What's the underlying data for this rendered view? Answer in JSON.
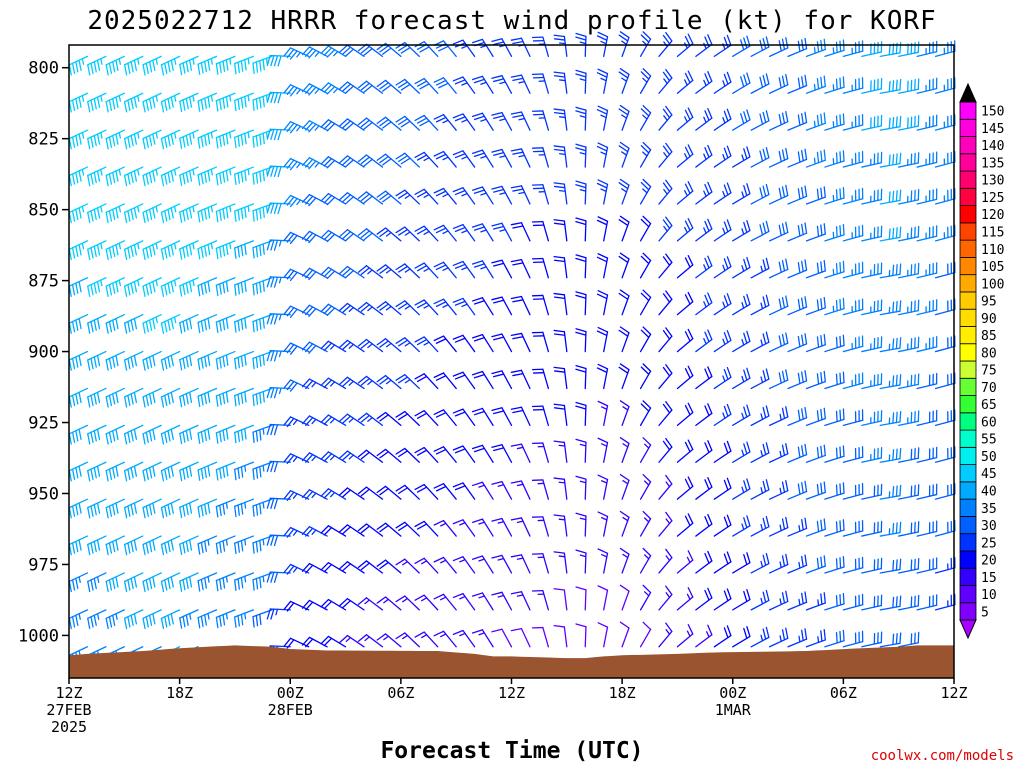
{
  "title": "2025022712 HRRR forecast wind profile (kt) for KORF",
  "xlabel": "Forecast Time (UTC)",
  "credit": "coolwx.com/models",
  "chart_data": {
    "type": "wind_barb_profile",
    "title": "2025022712 HRRR forecast wind profile (kt) for KORF",
    "xlabel": "Forecast Time (UTC)",
    "units": "kt",
    "y_axis": {
      "scale": "pressure",
      "reversed": true,
      "range": [
        792,
        1015
      ],
      "ticks": [
        800,
        825,
        850,
        875,
        900,
        925,
        950,
        975,
        1000
      ]
    },
    "x_axis": {
      "range_hours": [
        0,
        48
      ],
      "ticks": [
        {
          "hour": 0,
          "line1": "12Z",
          "line2": "27FEB",
          "line3": "2025"
        },
        {
          "hour": 6,
          "line1": "18Z",
          "line2": "",
          "line3": ""
        },
        {
          "hour": 12,
          "line1": "00Z",
          "line2": "28FEB",
          "line3": ""
        },
        {
          "hour": 18,
          "line1": "06Z",
          "line2": "",
          "line3": ""
        },
        {
          "hour": 24,
          "line1": "12Z",
          "line2": "",
          "line3": ""
        },
        {
          "hour": 30,
          "line1": "18Z",
          "line2": "",
          "line3": ""
        },
        {
          "hour": 36,
          "line1": "00Z",
          "line2": "1MAR",
          "line3": ""
        },
        {
          "hour": 42,
          "line1": "06Z",
          "line2": "",
          "line3": ""
        },
        {
          "hour": 48,
          "line1": "12Z",
          "line2": "",
          "line3": ""
        }
      ]
    },
    "barb_hours": [
      1,
      2,
      3,
      4,
      5,
      6,
      7,
      8,
      9,
      10,
      11,
      12,
      13,
      14,
      15,
      16,
      17,
      18,
      19,
      20,
      21,
      22,
      23,
      24,
      25,
      26,
      27,
      28,
      29,
      30,
      31,
      32,
      33,
      34,
      35,
      36,
      37,
      38,
      39,
      40,
      41,
      42,
      43,
      44,
      45,
      46,
      47
    ],
    "barb_levels": [
      796,
      809,
      822,
      835,
      848,
      861,
      874,
      887,
      900,
      913,
      926,
      939,
      952,
      965,
      978,
      991,
      1004
    ],
    "wind_keyframes": [
      {
        "hour": 1,
        "dir": 245,
        "speed_low": 35,
        "speed_high": 45
      },
      {
        "hour": 6,
        "dir": 245,
        "speed_low": 38,
        "speed_high": 45
      },
      {
        "hour": 11,
        "dir": 250,
        "speed_low": 30,
        "speed_high": 45
      },
      {
        "hour": 13,
        "dir": 295,
        "speed_low": 20,
        "speed_high": 35
      },
      {
        "hour": 18,
        "dir": 310,
        "speed_low": 15,
        "speed_high": 30
      },
      {
        "hour": 25,
        "dir": 335,
        "speed_low": 12,
        "speed_high": 25
      },
      {
        "hour": 30,
        "dir": 20,
        "speed_low": 10,
        "speed_high": 25
      },
      {
        "hour": 33,
        "dir": 50,
        "speed_low": 15,
        "speed_high": 25
      },
      {
        "hour": 38,
        "dir": 65,
        "speed_low": 25,
        "speed_high": 30
      },
      {
        "hour": 44,
        "dir": 80,
        "speed_low": 30,
        "speed_high": 40
      },
      {
        "hour": 47,
        "dir": 75,
        "speed_low": 25,
        "speed_high": 35
      }
    ],
    "surface_pressure": [
      {
        "hour": 0,
        "p": 1007.0
      },
      {
        "hour": 1,
        "p": 1006.5
      },
      {
        "hour": 4,
        "p": 1005.5
      },
      {
        "hour": 6,
        "p": 1004.5
      },
      {
        "hour": 9,
        "p": 1003.5
      },
      {
        "hour": 11,
        "p": 1004.0
      },
      {
        "hour": 12,
        "p": 1004.8
      },
      {
        "hour": 14,
        "p": 1005.3
      },
      {
        "hour": 20,
        "p": 1005.5
      },
      {
        "hour": 22,
        "p": 1006.5
      },
      {
        "hour": 23,
        "p": 1007.4
      },
      {
        "hour": 24,
        "p": 1007.4
      },
      {
        "hour": 27,
        "p": 1008.0
      },
      {
        "hour": 28,
        "p": 1008.0
      },
      {
        "hour": 29,
        "p": 1007.4
      },
      {
        "hour": 30,
        "p": 1007.0
      },
      {
        "hour": 33,
        "p": 1006.5
      },
      {
        "hour": 35,
        "p": 1006.0
      },
      {
        "hour": 40,
        "p": 1005.5
      },
      {
        "hour": 43,
        "p": 1004.5
      },
      {
        "hour": 45,
        "p": 1004.0
      },
      {
        "hour": 46,
        "p": 1003.5
      },
      {
        "hour": 48,
        "p": 1003.5
      }
    ],
    "terrain_color": "#9a5430",
    "colorbar": {
      "values": [
        5,
        10,
        15,
        20,
        25,
        30,
        35,
        40,
        45,
        50,
        55,
        60,
        65,
        70,
        75,
        80,
        85,
        90,
        95,
        100,
        105,
        110,
        115,
        120,
        125,
        130,
        135,
        140,
        145,
        150
      ],
      "colors": [
        "#7f00ff",
        "#6000ff",
        "#3300ff",
        "#0000ff",
        "#0033ff",
        "#0060ff",
        "#0080ff",
        "#00aaff",
        "#00ccff",
        "#00eeee",
        "#00ffcc",
        "#00ff80",
        "#33ff33",
        "#66ff33",
        "#ccff33",
        "#ffff00",
        "#ffee00",
        "#ffdd00",
        "#ffcc00",
        "#ffaa00",
        "#ff8800",
        "#ff6600",
        "#ff4400",
        "#ff0000",
        "#ff0040",
        "#ff0070",
        "#ff0099",
        "#ff00bb",
        "#ff00dd",
        "#ff00ff"
      ],
      "low_arrow": "#aa00ff",
      "high_arrow": "#000000"
    }
  }
}
